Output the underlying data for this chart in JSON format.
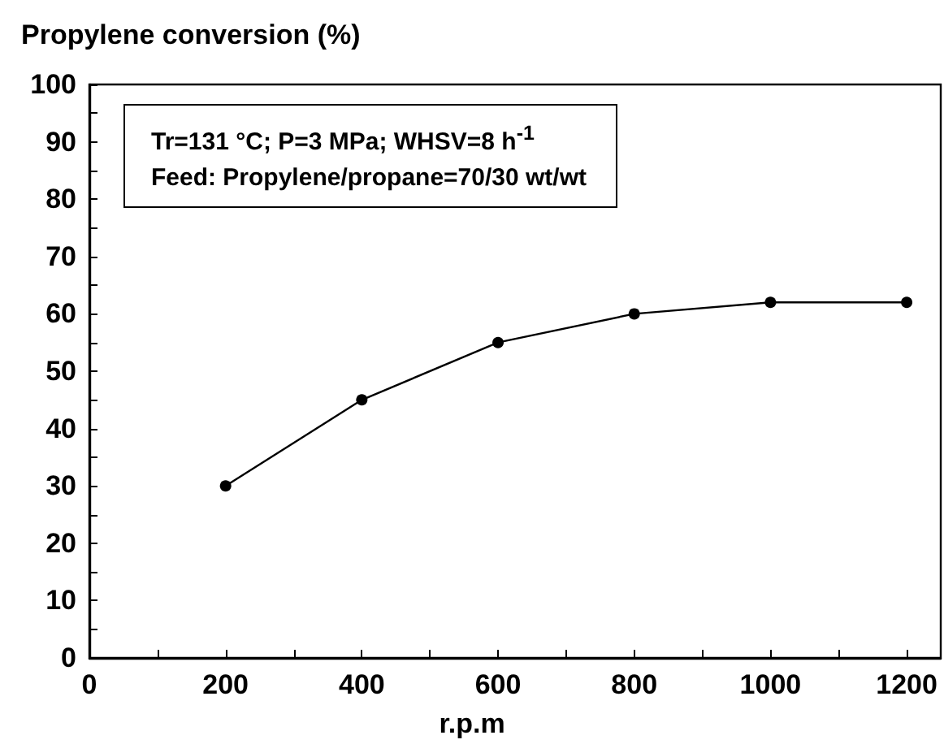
{
  "chart_data": {
    "type": "line",
    "title": "Propylene conversion (%)",
    "xlabel": "r.p.m",
    "x": [
      200,
      400,
      600,
      800,
      1000,
      1200
    ],
    "series": [
      {
        "color": "#000000",
        "values": [
          30,
          45,
          55,
          60,
          62,
          62
        ]
      }
    ],
    "xlim": [
      0,
      1250
    ],
    "xticks": [
      0,
      {
        "value": 100,
        "label": null
      },
      200,
      {
        "value": 300,
        "label": null
      },
      400,
      {
        "value": 500,
        "label": null
      },
      600,
      {
        "value": 700,
        "label": null
      },
      800,
      {
        "value": 900,
        "label": null
      },
      1000,
      {
        "value": 1100,
        "label": null
      },
      1200
    ],
    "ylim": [
      0,
      100
    ],
    "yticks": [
      0,
      {
        "value": 5,
        "label": null
      },
      10,
      {
        "value": 15,
        "label": null
      },
      20,
      {
        "value": 25,
        "label": null
      },
      30,
      {
        "value": 35,
        "label": null
      },
      40,
      {
        "value": 45,
        "label": null
      },
      50,
      {
        "value": 55,
        "label": null
      },
      60,
      {
        "value": 65,
        "label": null
      },
      70,
      {
        "value": 75,
        "label": null
      },
      80,
      {
        "value": 85,
        "label": null
      },
      90,
      {
        "value": 95,
        "label": null
      },
      100
    ],
    "annotations": [
      "Tr=131 °C; P=3 MPa; WHSV=8 h$^{-1}$",
      "Feed: Propylene/propane=70/30 wt/wt"
    ],
    "grid": false,
    "marker": "circle",
    "line_style": "solid"
  }
}
